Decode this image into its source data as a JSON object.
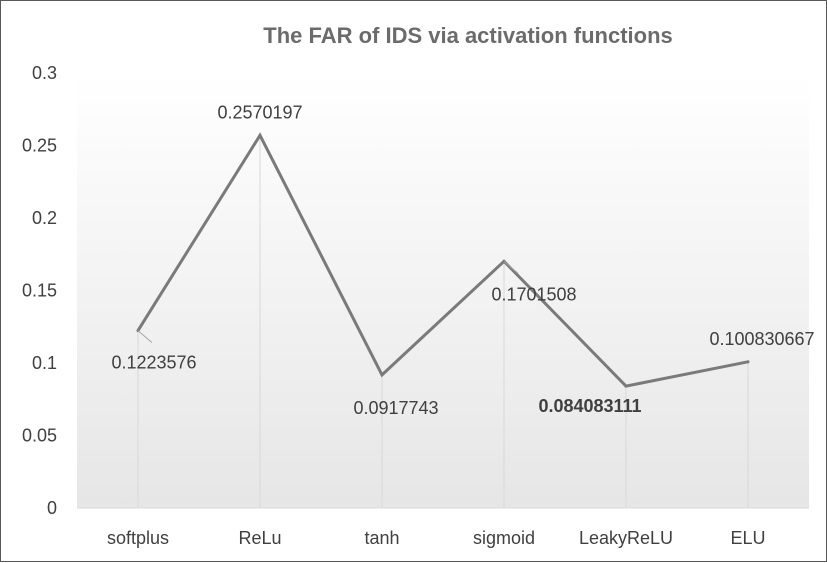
{
  "chart_data": {
    "type": "line",
    "title": "The FAR of IDS via activation functions",
    "xlabel": "",
    "ylabel": "",
    "categories": [
      "softplus",
      "ReLu",
      "tanh",
      "sigmoid",
      "LeakyReLU",
      "ELU"
    ],
    "series": [
      {
        "values": [
          0.1223576,
          0.2570197,
          0.0917743,
          0.1701508,
          0.084083111,
          0.100830667
        ]
      }
    ],
    "data_labels": [
      "0.1223576",
      "0.2570197",
      "0.0917743",
      "0.1701508",
      "0.084083111",
      "0.100830667"
    ],
    "bold_labels": [
      false,
      false,
      false,
      false,
      true,
      false
    ],
    "ylim": [
      0,
      0.3
    ],
    "yticks": [
      "0",
      "0.05",
      "0.1",
      "0.15",
      "0.2",
      "0.25",
      "0.3"
    ],
    "grid": false,
    "drop_lines": true,
    "line_color": "#7a7a7a",
    "drop_line_color": "#d9d9d9",
    "background_gradient": [
      "#ffffff",
      "#e6e6e6"
    ]
  }
}
